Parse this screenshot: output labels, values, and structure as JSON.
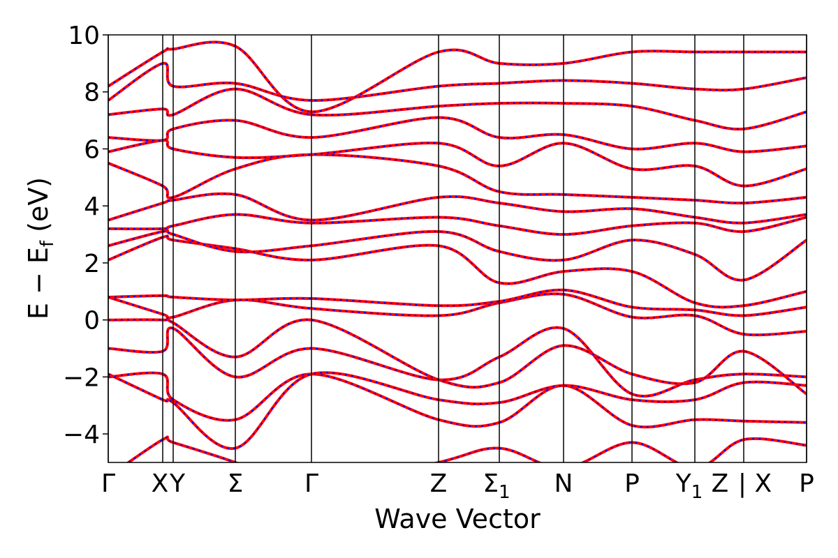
{
  "chart_data": {
    "type": "line",
    "title": "",
    "xlabel": "Wave Vector",
    "ylabel": "E − E",
    "ylabel_sub": "f",
    "ylabel_unit": " (eV)",
    "ylim": [
      -5,
      10
    ],
    "y_ticks": [
      {
        "value": -4,
        "label": "−4"
      },
      {
        "value": -2,
        "label": "−2"
      },
      {
        "value": 0,
        "label": "0"
      },
      {
        "value": 2,
        "label": "2"
      },
      {
        "value": 4,
        "label": "4"
      },
      {
        "value": 6,
        "label": "6"
      },
      {
        "value": 8,
        "label": "8"
      },
      {
        "value": 10,
        "label": "10"
      }
    ],
    "xlim": [
      0,
      10
    ],
    "k_points": [
      {
        "x": 0.0,
        "label": "Γ",
        "sub": ""
      },
      {
        "x": 0.78,
        "label": "X",
        "sub": ""
      },
      {
        "x": 0.93,
        "label": "Y",
        "sub": ""
      },
      {
        "x": 1.82,
        "label": "Σ",
        "sub": ""
      },
      {
        "x": 2.91,
        "label": "Γ",
        "sub": ""
      },
      {
        "x": 4.73,
        "label": "Z",
        "sub": ""
      },
      {
        "x": 5.6,
        "label": "Σ",
        "sub": "1"
      },
      {
        "x": 6.52,
        "label": "N",
        "sub": ""
      },
      {
        "x": 7.5,
        "label": "P",
        "sub": ""
      },
      {
        "x": 8.4,
        "label": "Y",
        "sub": "1"
      },
      {
        "x": 9.1,
        "label": "Z",
        "sub": ""
      },
      {
        "x": 9.1,
        "label": "| X",
        "sub": ""
      },
      {
        "x": 10.0,
        "label": "P",
        "sub": ""
      }
    ],
    "series_colors": {
      "primary": "#ff0000",
      "overlay": "#0000ff"
    },
    "grid": false,
    "legend": "none",
    "bands": [
      {
        "x": [
          0,
          0.78,
          0.93,
          1.82,
          2.91,
          4.73,
          5.6,
          6.52,
          7.5,
          8.4,
          9.1,
          10
        ],
        "y": [
          -5.5,
          -4.2,
          -4.3,
          -5.0,
          -6.0,
          -5.0,
          -4.5,
          -5.2,
          -4.3,
          -5.2,
          -4.2,
          -4.4
        ]
      },
      {
        "x": [
          0,
          0.78,
          0.93,
          1.82,
          2.91,
          4.73,
          5.6,
          6.52,
          7.5,
          8.4,
          9.1,
          10
        ],
        "y": [
          -2.0,
          -1.9,
          -2.8,
          -3.5,
          -1.9,
          -3.5,
          -3.6,
          -2.3,
          -3.7,
          -3.5,
          -3.55,
          -3.6
        ]
      },
      {
        "x": [
          0,
          0.78,
          0.93,
          1.82,
          2.91,
          4.73,
          5.6,
          6.52,
          7.5,
          8.4,
          9.1,
          10
        ],
        "y": [
          -1.9,
          -2.8,
          -2.9,
          -4.5,
          -1.9,
          -2.8,
          -2.9,
          -2.3,
          -2.8,
          -2.8,
          -2.2,
          -2.3
        ]
      },
      {
        "x": [
          0,
          0.78,
          0.93,
          1.82,
          2.91,
          4.73,
          5.6,
          6.52,
          7.5,
          8.4,
          9.1,
          10
        ],
        "y": [
          -1.0,
          -1.1,
          -0.3,
          -2.0,
          -1.0,
          -2.1,
          -1.3,
          -0.3,
          -2.6,
          -2.1,
          -1.9,
          -2.0
        ]
      },
      {
        "x": [
          0,
          0.78,
          0.93,
          1.82,
          2.91,
          4.73,
          5.6,
          6.52,
          7.5,
          8.4,
          9.1,
          10
        ],
        "y": [
          0.0,
          0.0,
          -0.1,
          -1.3,
          0.0,
          -2.1,
          -2.2,
          -0.9,
          -1.9,
          -2.2,
          -1.1,
          -2.6
        ]
      },
      {
        "x": [
          0,
          0.78,
          0.93,
          1.82,
          2.91,
          4.73,
          5.6,
          6.52,
          7.5,
          8.4,
          9.1,
          10
        ],
        "y": [
          0.8,
          0.2,
          0.1,
          0.7,
          0.4,
          0.15,
          0.6,
          0.9,
          0.1,
          0.15,
          -0.5,
          -0.4
        ]
      },
      {
        "x": [
          0,
          0.78,
          0.93,
          1.82,
          2.91,
          4.73,
          5.6,
          6.52,
          7.5,
          8.4,
          9.1,
          10
        ],
        "y": [
          0.8,
          0.85,
          0.8,
          0.7,
          0.75,
          0.5,
          0.65,
          1.05,
          0.45,
          0.35,
          0.15,
          0.45
        ]
      },
      {
        "x": [
          0,
          0.78,
          0.93,
          1.82,
          2.91,
          4.73,
          5.6,
          6.52,
          7.5,
          8.4,
          9.1,
          10
        ],
        "y": [
          2.1,
          2.9,
          2.8,
          2.5,
          2.1,
          2.6,
          1.3,
          1.7,
          1.7,
          0.6,
          0.5,
          1.0
        ]
      },
      {
        "x": [
          0,
          0.78,
          0.93,
          1.82,
          2.91,
          4.73,
          5.6,
          6.52,
          7.5,
          8.4,
          9.1,
          10
        ],
        "y": [
          2.6,
          3.1,
          3.0,
          2.4,
          2.6,
          3.1,
          2.4,
          2.1,
          2.8,
          2.3,
          1.4,
          2.8
        ]
      },
      {
        "x": [
          0,
          0.78,
          0.93,
          1.82,
          2.91,
          4.73,
          5.6,
          6.52,
          7.5,
          8.4,
          9.1,
          10
        ],
        "y": [
          3.2,
          3.2,
          3.3,
          3.7,
          3.4,
          3.6,
          3.3,
          3.0,
          3.3,
          3.4,
          3.1,
          3.6
        ]
      },
      {
        "x": [
          0,
          0.78,
          0.93,
          1.82,
          2.91,
          4.73,
          5.6,
          6.52,
          7.5,
          8.4,
          9.1,
          10
        ],
        "y": [
          3.5,
          4.1,
          4.2,
          4.4,
          3.5,
          4.3,
          4.1,
          3.8,
          3.9,
          3.6,
          3.4,
          3.7
        ]
      },
      {
        "x": [
          0,
          0.78,
          0.93,
          1.82,
          2.91,
          4.73,
          5.6,
          6.52,
          7.5,
          8.4,
          9.1,
          10
        ],
        "y": [
          5.5,
          4.7,
          4.3,
          5.3,
          5.8,
          5.4,
          4.5,
          4.4,
          4.3,
          4.2,
          4.1,
          4.3
        ]
      },
      {
        "x": [
          0,
          0.78,
          0.93,
          1.82,
          2.91,
          4.73,
          5.6,
          6.52,
          7.5,
          8.4,
          9.1,
          10
        ],
        "y": [
          5.9,
          6.3,
          6.0,
          5.7,
          5.8,
          6.2,
          5.4,
          6.2,
          5.3,
          5.4,
          4.7,
          5.3
        ]
      },
      {
        "x": [
          0,
          0.78,
          0.93,
          1.82,
          2.91,
          4.73,
          5.6,
          6.52,
          7.5,
          8.4,
          9.1,
          10
        ],
        "y": [
          6.4,
          6.3,
          6.7,
          7.0,
          6.4,
          7.1,
          6.4,
          6.5,
          6.0,
          6.2,
          5.9,
          6.1
        ]
      },
      {
        "x": [
          0,
          0.78,
          0.93,
          1.82,
          2.91,
          4.73,
          5.6,
          6.52,
          7.5,
          8.4,
          9.1,
          10
        ],
        "y": [
          7.2,
          7.4,
          7.2,
          8.1,
          7.2,
          7.5,
          7.6,
          7.6,
          7.5,
          7.0,
          6.7,
          7.3
        ]
      },
      {
        "x": [
          0,
          0.78,
          0.93,
          1.82,
          2.91,
          4.73,
          5.6,
          6.52,
          7.5,
          8.4,
          9.1,
          10
        ],
        "y": [
          7.7,
          9.0,
          8.2,
          8.3,
          7.7,
          8.2,
          8.3,
          8.4,
          8.3,
          8.1,
          8.1,
          8.5
        ]
      },
      {
        "x": [
          0,
          0.78,
          0.93,
          1.82,
          2.91,
          4.73,
          5.6,
          6.52,
          7.5,
          8.4,
          9.1,
          10
        ],
        "y": [
          8.2,
          9.4,
          9.5,
          9.6,
          7.3,
          9.4,
          9.0,
          9.0,
          9.4,
          9.4,
          9.4,
          9.4
        ]
      }
    ]
  }
}
